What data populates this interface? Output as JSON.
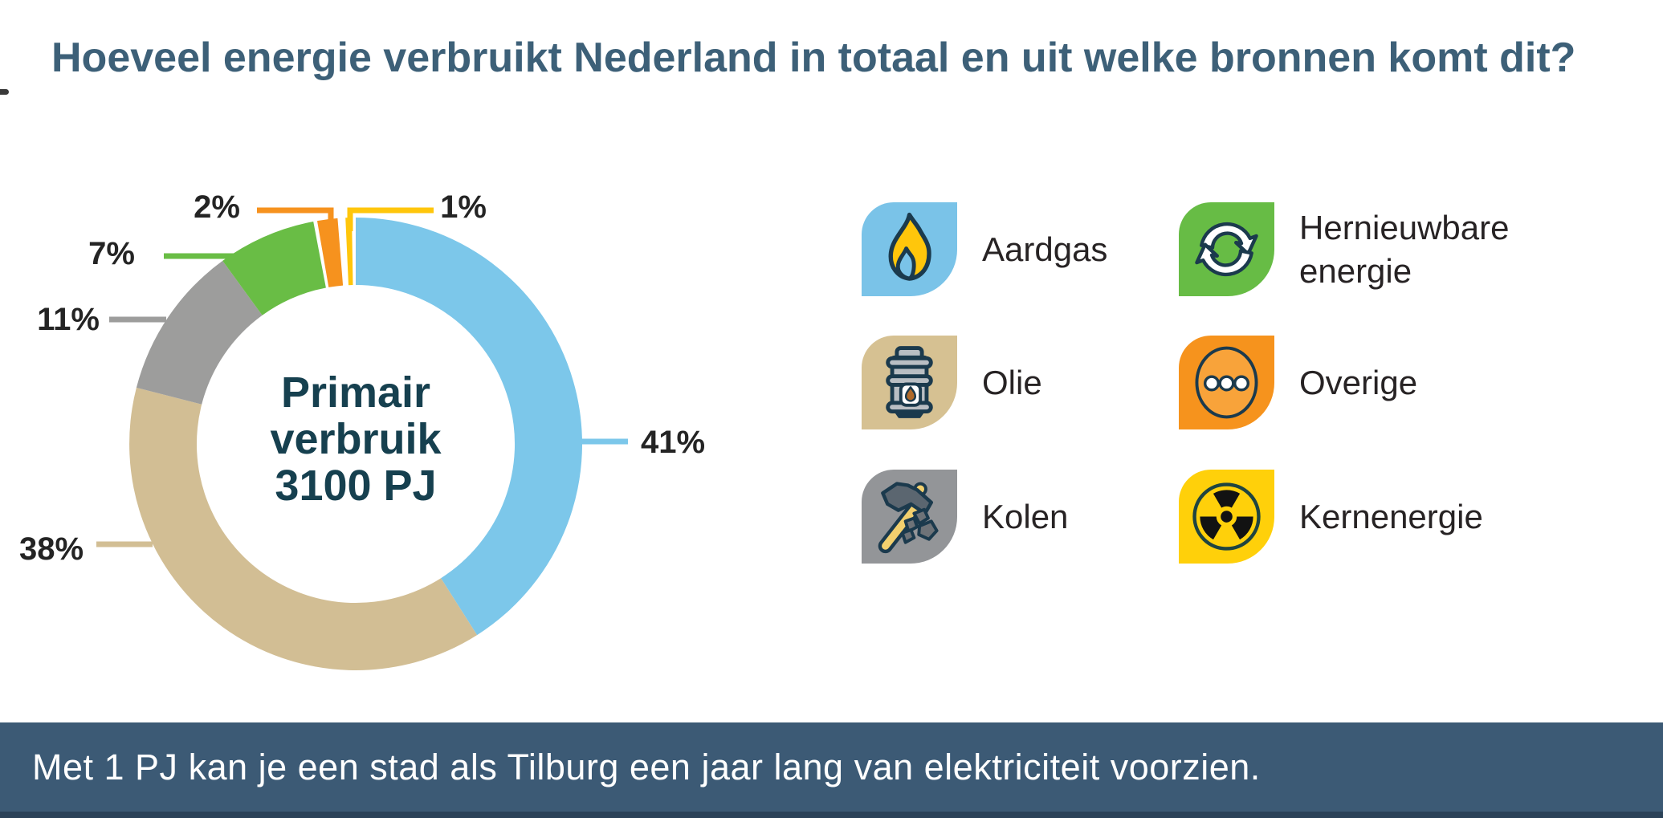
{
  "title": "Hoeveel energie verbruikt Nederland in totaal en uit welke bronnen komt dit?",
  "chart_data": {
    "type": "pie",
    "subtype": "donut",
    "title": "Primair verbruik 3100 PJ",
    "center_lines": [
      "Primair",
      "verbruik",
      "3100 PJ"
    ],
    "unit": "%",
    "categories": [
      "Aardgas",
      "Olie",
      "Kolen",
      "Hernieuwbare energie",
      "Overige",
      "Kernenergie"
    ],
    "values": [
      41,
      38,
      11,
      7,
      2,
      1
    ],
    "value_labels": [
      "41%",
      "38%",
      "11%",
      "7%",
      "2%",
      "1%"
    ],
    "colors": [
      "#7CC7EA",
      "#D2BE94",
      "#9D9D9C",
      "#69BD45",
      "#F6921E",
      "#FFC60B"
    ],
    "start_angle_deg": 0,
    "direction": "clockwise",
    "legend_position": "right",
    "grid": false
  },
  "legend": {
    "items": [
      {
        "label": "Aardgas",
        "icon": "flame-icon",
        "tile_color": "#7AC3E8"
      },
      {
        "label": "Hernieuwbare energie",
        "icon": "recycle-icon",
        "tile_color": "#67BC45"
      },
      {
        "label": "Olie",
        "icon": "oil-barrel-icon",
        "tile_color": "#D6C192"
      },
      {
        "label": "Overige",
        "icon": "ellipsis-icon",
        "tile_color": "#F6931D"
      },
      {
        "label": "Kolen",
        "icon": "hammer-coal-icon",
        "tile_color": "#939598"
      },
      {
        "label": "Kernenergie",
        "icon": "radiation-icon",
        "tile_color": "#FFD00A"
      }
    ]
  },
  "footer": {
    "text": "Met 1 PJ kan je een stad als Tilburg een jaar lang van elektriciteit voorzien."
  },
  "palette": {
    "bg": "#FFFFFF",
    "title-color": "#3D6078",
    "center-text": "#16404F",
    "text-dark": "#242424",
    "legend-text": "#272324",
    "outline": "#1B3A4D",
    "footer-bg": "#3C5A75",
    "footer-strip": "#2B4258",
    "footer-text": "#FFFFFF",
    "flame-yellow": "#FFC60B",
    "ellipse-orange": "#F8A33A",
    "barrel-gray": "#B9BEC3",
    "handle-yellow": "#F2D06E",
    "head-gray": "#5B6670",
    "coal-gray": "#6E7378"
  }
}
